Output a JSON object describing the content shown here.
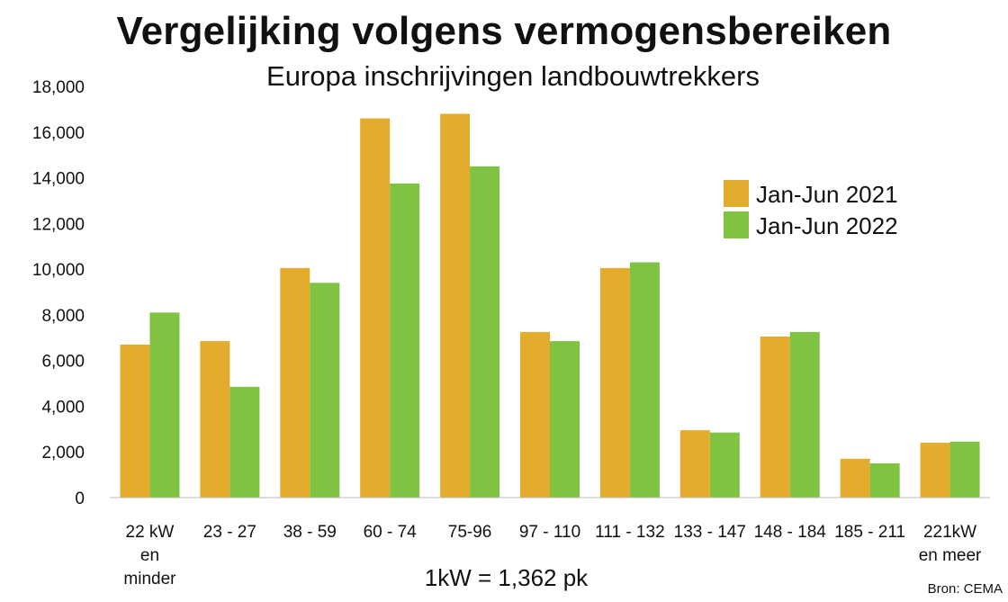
{
  "chart_data": {
    "type": "bar",
    "title": "Vergelijking volgens vermogensbereiken",
    "subtitle": "Europa inschrijvingen landbouwtrekkers",
    "categories": [
      [
        "22 kW",
        "en",
        "minder"
      ],
      [
        "23 - 27"
      ],
      [
        "38 - 59"
      ],
      [
        "60 - 74"
      ],
      [
        "75-96"
      ],
      [
        "97 - 110"
      ],
      [
        "111 - 132"
      ],
      [
        "133 - 147"
      ],
      [
        "148 - 184"
      ],
      [
        "185 - 211"
      ],
      [
        "221kW",
        "en meer"
      ]
    ],
    "series": [
      {
        "name": "Jan-Jun 2021",
        "color": "#E4AC2C",
        "values": [
          6700,
          6850,
          10050,
          16600,
          16800,
          7250,
          10050,
          2950,
          7050,
          1700,
          2400
        ]
      },
      {
        "name": "Jan-Jun 2022",
        "color": "#80C242",
        "values": [
          8100,
          4850,
          9400,
          13750,
          14500,
          6850,
          10300,
          2850,
          7250,
          1500,
          2450
        ]
      }
    ],
    "ylim": [
      0,
      18000
    ],
    "yticks": [
      "0",
      "2,000",
      "4,000",
      "6,000",
      "8,000",
      "10,000",
      "12,000",
      "14,000",
      "16,000",
      "18,000"
    ],
    "grid": false,
    "legend_position": "top-right",
    "note": "1kW = 1,362 pk",
    "source": "Bron: CEMA"
  }
}
